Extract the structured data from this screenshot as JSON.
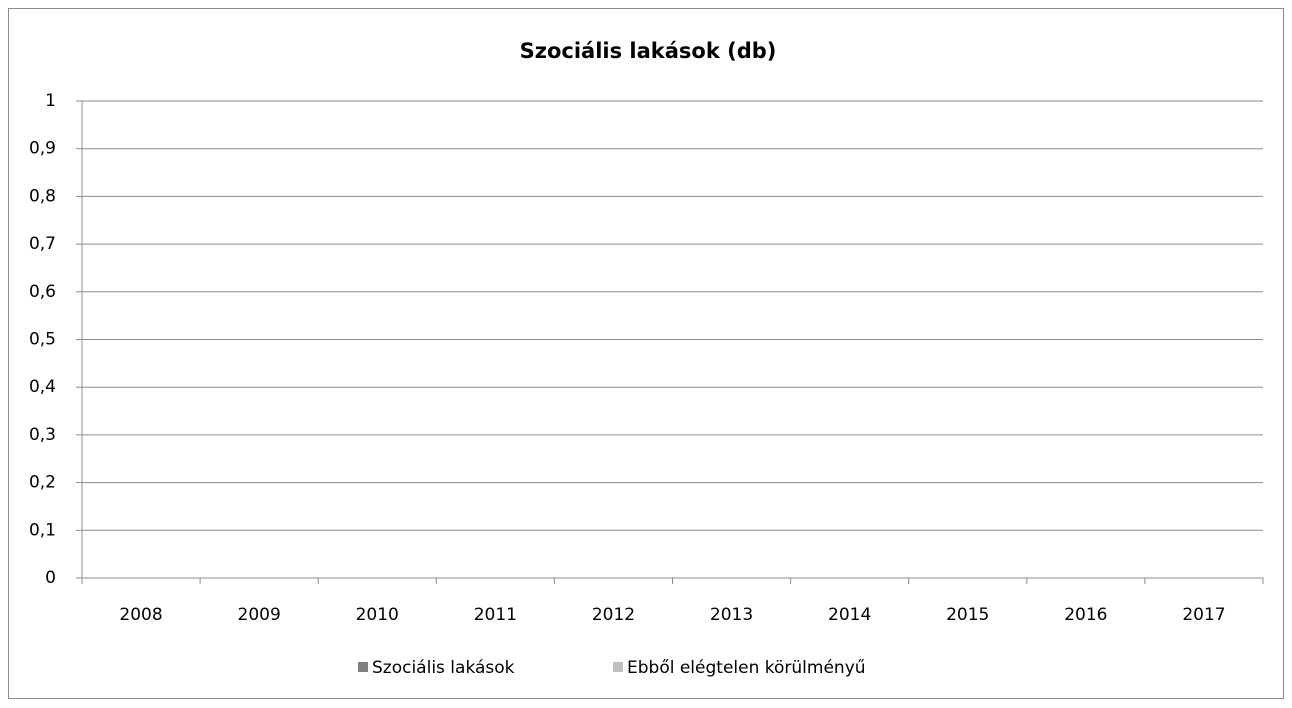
{
  "chart_data": {
    "type": "bar",
    "title": "Szociális lakások (db)",
    "categories": [
      "2008",
      "2009",
      "2010",
      "2011",
      "2012",
      "2013",
      "2014",
      "2015",
      "2016",
      "2017"
    ],
    "series": [
      {
        "name": "Szociális lakások",
        "color": "#808080",
        "values": [
          0,
          0,
          0,
          0,
          0,
          0,
          0,
          0,
          0,
          0
        ]
      },
      {
        "name": "Ebből elégtelen körülményű",
        "color": "#bfbfbf",
        "values": [
          0,
          0,
          0,
          0,
          0,
          0,
          0,
          0,
          0,
          0
        ]
      }
    ],
    "ylim": [
      0,
      1
    ],
    "yticks": [
      0,
      {
        "value": 0.1,
        "label": "0,1"
      },
      {
        "value": 0.2,
        "label": "0,2"
      },
      {
        "value": 0.3,
        "label": "0,3"
      },
      {
        "value": 0.4,
        "label": "0,4"
      },
      {
        "value": 0.5,
        "label": "0,5"
      },
      {
        "value": 0.6,
        "label": "0,6"
      },
      {
        "value": 0.7,
        "label": "0,7"
      },
      {
        "value": 0.8,
        "label": "0,8"
      },
      {
        "value": 0.9,
        "label": "0,9"
      },
      1
    ],
    "grid": true,
    "legend": "bottom"
  }
}
